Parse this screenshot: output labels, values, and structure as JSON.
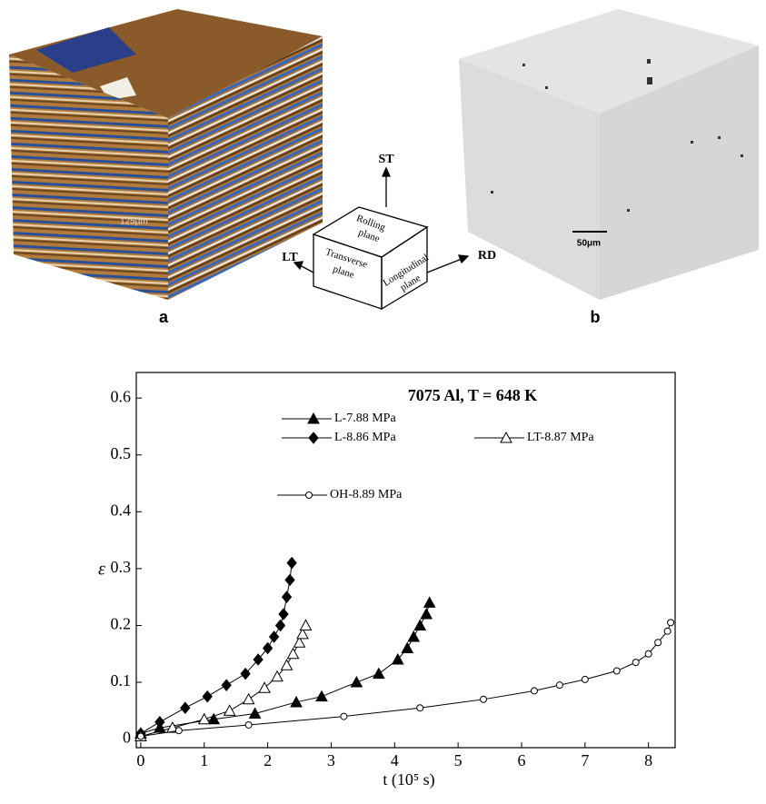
{
  "panels": [
    {
      "label": "a",
      "scale_bar": "125μm"
    },
    {
      "label": "b",
      "scale_bar": "50μm"
    }
  ],
  "diagram": {
    "axes": [
      "ST",
      "LT",
      "RD"
    ],
    "planes": [
      [
        "Rolling",
        "plane"
      ],
      [
        "Transverse",
        "plane"
      ],
      [
        "Longitudinal",
        "plane"
      ]
    ]
  },
  "chart_data": {
    "type": "line",
    "title": "7075 Al, T = 648 K",
    "x_label": "t (10⁵ s)",
    "y_label": "ε",
    "xlim": [
      -0.07,
      8.42
    ],
    "ylim": [
      -0.015,
      0.645
    ],
    "xticks": [
      0,
      1,
      2,
      3,
      4,
      5,
      6,
      7,
      8
    ],
    "yticks": [
      0,
      0.1,
      0.2,
      0.3,
      0.4,
      0.5,
      0.6
    ],
    "series": [
      {
        "name": "L-7.88 MPa",
        "color": "#000000",
        "marker": "triangle-filled",
        "x": [
          0,
          0.3,
          1.15,
          1.8,
          2.45,
          2.85,
          3.4,
          3.75,
          4.05,
          4.2,
          4.3,
          4.4,
          4.5,
          4.55
        ],
        "values": [
          0.01,
          0.02,
          0.035,
          0.045,
          0.065,
          0.075,
          0.1,
          0.115,
          0.14,
          0.16,
          0.18,
          0.2,
          0.22,
          0.24
        ]
      },
      {
        "name": "L-8.86 MPa",
        "color": "#000000",
        "marker": "diamond-filled",
        "x": [
          0,
          0.3,
          0.7,
          1.05,
          1.35,
          1.65,
          1.85,
          2.0,
          2.1,
          2.2,
          2.25,
          2.3,
          2.35,
          2.38
        ],
        "values": [
          0.01,
          0.03,
          0.055,
          0.075,
          0.095,
          0.115,
          0.14,
          0.16,
          0.18,
          0.2,
          0.22,
          0.25,
          0.28,
          0.31
        ]
      },
      {
        "name": "LT-8.87 MPa",
        "color": "#000000",
        "marker": "triangle-open",
        "x": [
          0,
          0.5,
          1.0,
          1.4,
          1.7,
          1.95,
          2.15,
          2.3,
          2.4,
          2.5,
          2.55,
          2.6
        ],
        "values": [
          0.005,
          0.02,
          0.035,
          0.05,
          0.07,
          0.09,
          0.11,
          0.13,
          0.15,
          0.17,
          0.185,
          0.2
        ]
      },
      {
        "name": "OH-8.89 MPa",
        "color": "#000000",
        "marker": "circle-open",
        "x": [
          0,
          0.6,
          1.7,
          3.2,
          4.4,
          5.4,
          6.2,
          6.6,
          7.0,
          7.5,
          7.8,
          8.0,
          8.15,
          8.3,
          8.35
        ],
        "values": [
          0.005,
          0.015,
          0.025,
          0.04,
          0.055,
          0.07,
          0.085,
          0.095,
          0.105,
          0.12,
          0.135,
          0.15,
          0.17,
          0.19,
          0.205
        ]
      }
    ]
  }
}
